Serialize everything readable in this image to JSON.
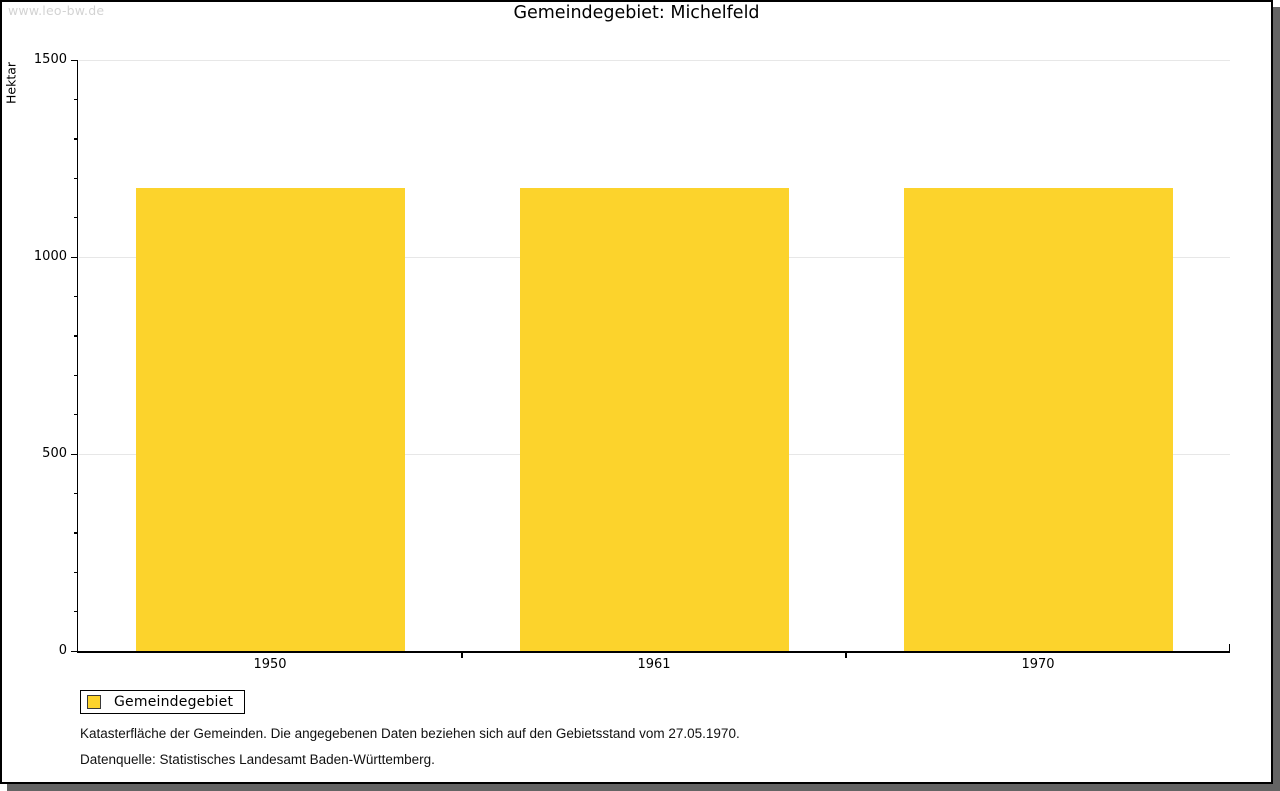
{
  "watermark": "www.leo-bw.de",
  "chart_data": {
    "type": "bar",
    "title": "Gemeindegebiet: Michelfeld",
    "categories": [
      "1950",
      "1961",
      "1970"
    ],
    "series": [
      {
        "name": "Gemeindegebiet",
        "values": [
          1175,
          1175,
          1175
        ]
      }
    ],
    "xlabel": "",
    "ylabel": "Hektar",
    "ylim": [
      0,
      1500
    ],
    "ytick_major_step": 500,
    "ytick_minor_step": 100,
    "ytick_labels": [
      "0",
      "500",
      "1000",
      "1500"
    ],
    "grid": true,
    "legend_position": "bottom-left",
    "bar_color": "#fcd32c",
    "gridline_color": "#e7e7e7",
    "axis_color": "#000000"
  },
  "legend": {
    "items": [
      {
        "label": "Gemeindegebiet",
        "color": "#fcd32c"
      }
    ]
  },
  "footnotes": [
    "Katasterfläche der Gemeinden. Die angegebenen Daten beziehen sich auf den Gebietsstand vom 27.05.1970.",
    "Datenquelle: Statistisches Landesamt Baden-Württemberg."
  ]
}
